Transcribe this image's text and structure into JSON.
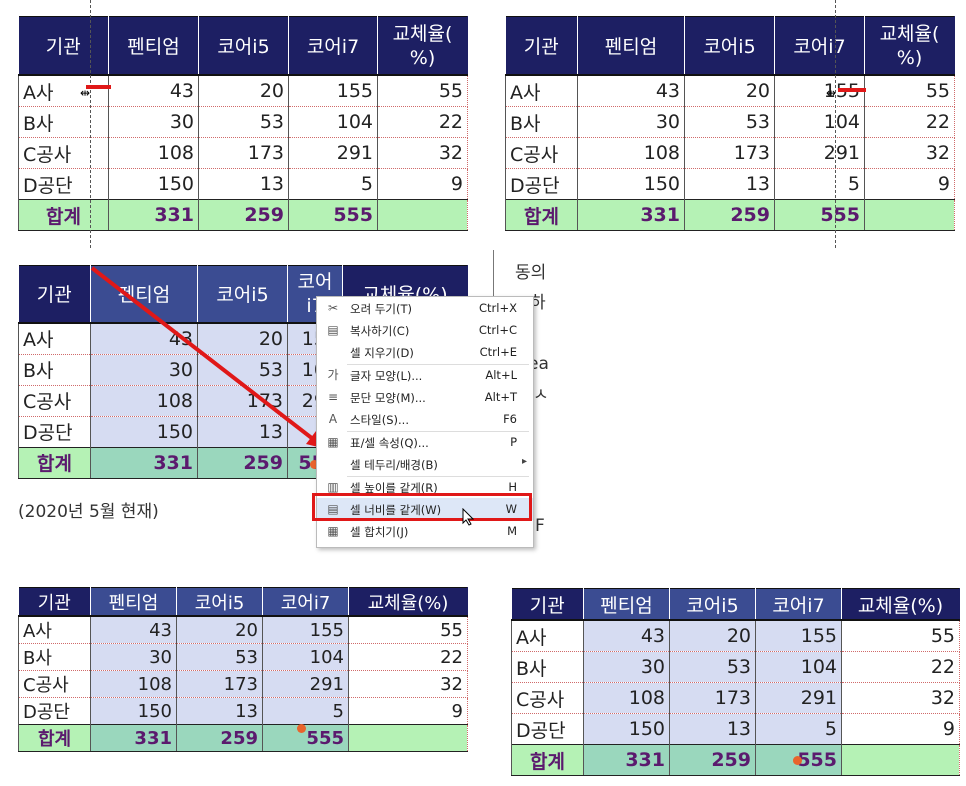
{
  "headers": [
    "기관",
    "펜티엄",
    "코어i5",
    "코어i7",
    "교체율(%)"
  ],
  "header_wrapped": {
    "col3": "코어 i7",
    "col4_line1": "교체율(",
    "col4_line2": "%)"
  },
  "rows": [
    [
      "A사",
      "43",
      "20",
      "155",
      "55"
    ],
    [
      "B사",
      "30",
      "53",
      "104",
      "22"
    ],
    [
      "C공사",
      "108",
      "173",
      "291",
      "32"
    ],
    [
      "D공단",
      "150",
      "13",
      "5",
      "9"
    ]
  ],
  "total": [
    "합계",
    "331",
    "259",
    "555",
    ""
  ],
  "caption": "(2020년 5월 현재)",
  "context_menu": {
    "items": [
      {
        "icon": "scissors-icon",
        "glyph": "✂",
        "label": "오려 두기(T)",
        "shortcut": "Ctrl+X"
      },
      {
        "icon": "copy-icon",
        "glyph": "▤",
        "label": "복사하기(C)",
        "shortcut": "Ctrl+C"
      },
      {
        "icon": "",
        "glyph": "",
        "label": "셀 지우기(D)",
        "shortcut": "Ctrl+E"
      },
      {
        "icon": "char-format-icon",
        "glyph": "가",
        "label": "글자 모양(L)...",
        "shortcut": "Alt+L"
      },
      {
        "icon": "para-format-icon",
        "glyph": "≡",
        "label": "문단 모양(M)...",
        "shortcut": "Alt+T"
      },
      {
        "icon": "style-icon",
        "glyph": "A",
        "label": "스타일(S)...",
        "shortcut": "F6"
      },
      {
        "icon": "table-props-icon",
        "glyph": "▦",
        "label": "표/셀 속성(Q)...",
        "shortcut": "P"
      },
      {
        "icon": "",
        "glyph": "",
        "label": "셀 테두리/배경(B)",
        "shortcut": ""
      },
      {
        "icon": "equal-height-icon",
        "glyph": "▥",
        "label": "셀 높이를 같게(R)",
        "shortcut": "H"
      },
      {
        "icon": "equal-width-icon",
        "glyph": "▤",
        "label": "셀 너비를 같게(W)",
        "shortcut": "W"
      },
      {
        "icon": "merge-cells-icon",
        "glyph": "▦",
        "label": "셀 합치기(J)",
        "shortcut": "M"
      }
    ],
    "submenu_arrow": "▸"
  },
  "background_text": [
    "동의",
    "하",
    "ea",
    "ㅅ",
    "F"
  ],
  "colors": {
    "header": "#1d1f63",
    "total": "#b5f2b5",
    "selected": "#d6dcf2",
    "highlight": "#e01818"
  }
}
